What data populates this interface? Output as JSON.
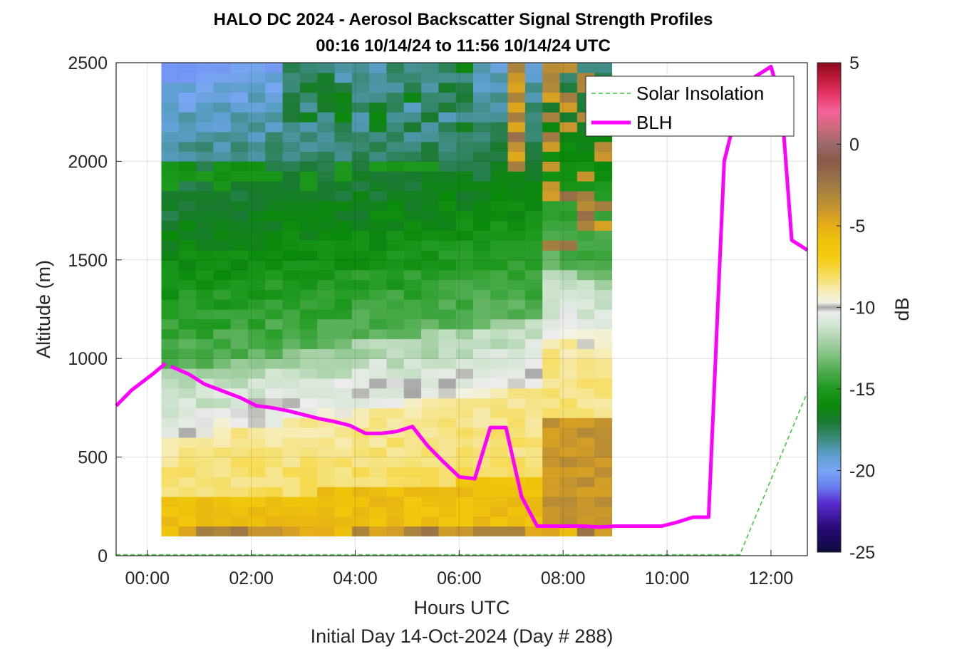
{
  "chart_data": {
    "type": "heatmap",
    "title": "HALO DC 2024 - Aerosol Backscatter Signal Strength Profiles",
    "subtitle": "00:16 10/14/24 to 11:56 10/14/24  UTC",
    "xlabel": "Hours UTC",
    "xlabel2": "Initial Day 14-Oct-2024 (Day # 288)",
    "ylabel": "Altitude (m)",
    "xlim": [
      -0.6,
      12.7
    ],
    "ylim": [
      0,
      2500
    ],
    "x_ticks": [
      0,
      2,
      4,
      6,
      8,
      10,
      12
    ],
    "x_tick_labels": [
      "00:00",
      "02:00",
      "04:00",
      "06:00",
      "08:00",
      "10:00",
      "12:00"
    ],
    "y_ticks": [
      0,
      500,
      1000,
      1500,
      2000,
      2500
    ],
    "y_tick_labels": [
      "0",
      "500",
      "1000",
      "1500",
      "2000",
      "2500"
    ],
    "grid": true,
    "legend_position": "top-right",
    "colorbar": {
      "label": "dB",
      "range": [
        -25,
        5
      ],
      "ticks": [
        -25,
        -20,
        -15,
        -10,
        -5,
        0,
        5
      ],
      "tick_labels": [
        "-25",
        "-20",
        "-15",
        "-10",
        "-5",
        "0",
        "5"
      ]
    },
    "heatmap": {
      "time_start": 0.27,
      "time_step": 0.3333,
      "alt_start": 100,
      "alt_step": 50,
      "profile_count": 26,
      "gate_count": 48,
      "description_values_dB": "per-profile backscatter approximated from figure"
    },
    "series": [
      {
        "name": "Solar Insolation",
        "style": "dashed",
        "color": "#33cc33",
        "x": [
          -0.6,
          11.4,
          12.7
        ],
        "y": [
          5,
          5,
          830
        ]
      },
      {
        "name": "BLH",
        "style": "solid",
        "color": "#ff00ff",
        "segments": [
          {
            "x": [
              -0.6,
              -0.3,
              0.1,
              0.35
            ],
            "y": [
              760,
              840,
              920,
              975
            ]
          },
          {
            "x": [
              0.45,
              0.8,
              1.1,
              1.4,
              1.8,
              2.1,
              2.4,
              2.7,
              3.0,
              3.3,
              3.6,
              3.9,
              4.2,
              4.5,
              4.8,
              5.1,
              5.4,
              5.7,
              6.0,
              6.3,
              6.6,
              6.9,
              7.2,
              7.5,
              7.8,
              8.1,
              8.4,
              8.7,
              9.0,
              9.3,
              9.6,
              9.9,
              10.2,
              10.5,
              10.8,
              11.1,
              11.4,
              11.7,
              12.0,
              12.2,
              12.4,
              12.7
            ],
            "y": [
              960,
              920,
              870,
              840,
              800,
              760,
              750,
              735,
              715,
              695,
              680,
              660,
              620,
              620,
              630,
              655,
              555,
              475,
              400,
              390,
              650,
              650,
              300,
              150,
              150,
              150,
              150,
              145,
              150,
              150,
              150,
              150,
              170,
              195,
              195,
              2000,
              2320,
              2430,
              2480,
              2300,
              1600,
              1550
            ]
          }
        ]
      }
    ]
  }
}
